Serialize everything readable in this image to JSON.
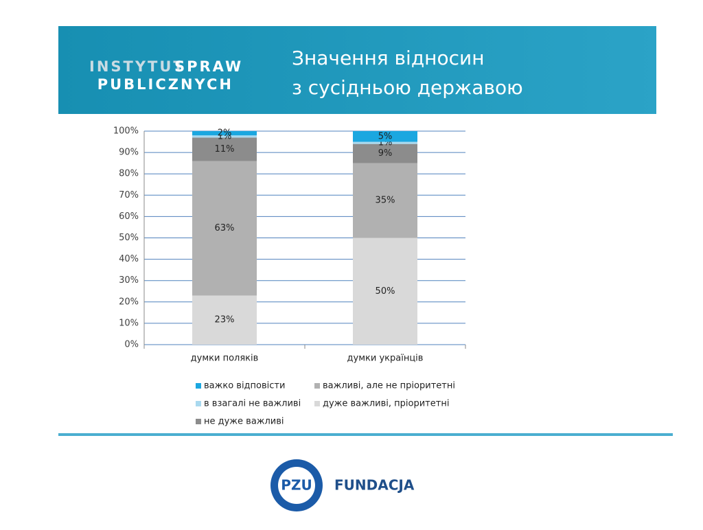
{
  "header": {
    "logo": {
      "word1": "INSTYTUT",
      "word2": "SPRAW",
      "line2": "PUBLICZNYCH"
    },
    "title_lines": [
      "Значення відносин",
      "з сусідньою державою"
    ]
  },
  "chart_data": {
    "type": "stacked_bar",
    "categories": [
      "думки поляків",
      "думки українців"
    ],
    "series": [
      {
        "name": "дуже важливі, пріоритетні",
        "color": "#d9d9d9",
        "values": [
          23,
          50
        ],
        "value_labels": [
          "23%",
          "50%"
        ]
      },
      {
        "name": "важливі, але не пріоритетні",
        "color": "#b1b1b1",
        "values": [
          63,
          35
        ],
        "value_labels": [
          "63%",
          "35%"
        ]
      },
      {
        "name": "не дуже важливі",
        "color": "#8c8c8c",
        "values": [
          11,
          9
        ],
        "value_labels": [
          "11%",
          "9%"
        ]
      },
      {
        "name": "в взагалі не важливі",
        "color": "#a9d9ef",
        "values": [
          1,
          1
        ],
        "value_labels": [
          "1%",
          "1%"
        ]
      },
      {
        "name": "важко відповісти",
        "color": "#1ba7e0",
        "values": [
          2,
          5
        ],
        "value_labels": [
          "2%",
          "5%"
        ]
      }
    ],
    "ylim": [
      0,
      100
    ],
    "yticks": [
      {
        "value": 0,
        "label": "0%"
      },
      {
        "value": 10,
        "label": "10%"
      },
      {
        "value": 20,
        "label": "20%"
      },
      {
        "value": 30,
        "label": "30%"
      },
      {
        "value": 40,
        "label": "40%"
      },
      {
        "value": 50,
        "label": "50%"
      },
      {
        "value": 60,
        "label": "60%"
      },
      {
        "value": 70,
        "label": "70%"
      },
      {
        "value": 80,
        "label": "80%"
      },
      {
        "value": 90,
        "label": "90%"
      },
      {
        "value": 100,
        "label": "100%"
      }
    ],
    "grid": true
  },
  "footer": {
    "logo_mark": "PZU",
    "logo_text": "FUNDACJA"
  }
}
